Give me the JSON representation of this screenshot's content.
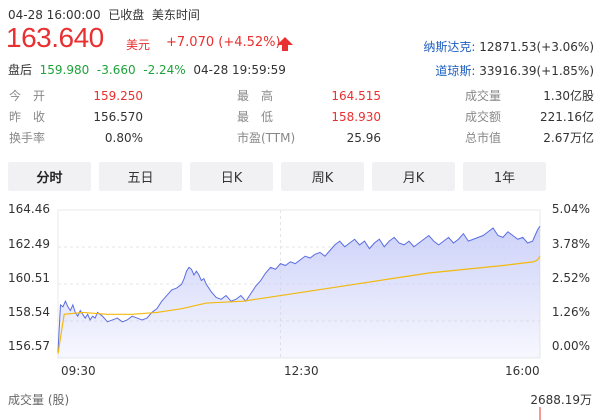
{
  "header": {
    "datetime": "04-28 16:00:00",
    "status": "已收盘",
    "timezone": "美东时间",
    "price": "163.640",
    "currency": "美元",
    "change": "+7.070 (+4.52%)",
    "after_hours": {
      "label": "盘后",
      "price": "159.980",
      "change": "-3.660",
      "pct": "-2.24%",
      "time": "04-28 19:59:59"
    }
  },
  "indices": [
    {
      "name": "纳斯达克:",
      "value": "12871.53(+3.06%)"
    },
    {
      "name": "道琼斯:",
      "value": "33916.39(+1.85%)"
    }
  ],
  "stats": [
    [
      {
        "label": "今　开",
        "value": "159.250",
        "color": "red"
      },
      {
        "label": "最　高",
        "value": "164.515",
        "color": "red"
      },
      {
        "label": "成交量",
        "value": "1.30亿股",
        "color": "normal"
      }
    ],
    [
      {
        "label": "昨　收",
        "value": "156.570",
        "color": "normal"
      },
      {
        "label": "最　低",
        "value": "158.930",
        "color": "red"
      },
      {
        "label": "成交额",
        "value": "221.16亿",
        "color": "normal"
      }
    ],
    [
      {
        "label": "换手率",
        "value": "0.80%",
        "color": "normal"
      },
      {
        "label": "市盈(TTM)",
        "value": "25.96",
        "color": "normal"
      },
      {
        "label": "总市值",
        "value": "2.67万亿",
        "color": "normal"
      }
    ]
  ],
  "tabs": [
    "分时",
    "五日",
    "日K",
    "周K",
    "月K",
    "1年"
  ],
  "active_tab": 0,
  "colors": {
    "up": "#e93030",
    "down": "#1ea33a",
    "price_line": "#5b6ee1",
    "avg_line": "#f2b90f",
    "area": "#c8cdf8",
    "link": "#1d5fbf"
  },
  "chart_data": {
    "type": "line",
    "y_left_ticks": [
      "164.46",
      "162.49",
      "160.51",
      "158.54",
      "156.57"
    ],
    "y_right_ticks": [
      "5.04%",
      "3.78%",
      "2.52%",
      "1.26%",
      "0.00%"
    ],
    "ylim": [
      156.57,
      164.46
    ],
    "x_ticks": [
      "09:30",
      "12:30",
      "16:00"
    ],
    "session_minutes": 390,
    "x_tick_minutes": [
      0,
      180,
      390
    ],
    "series": [
      {
        "role": "price",
        "points": [
          [
            0,
            156.9
          ],
          [
            2,
            159.4
          ],
          [
            4,
            159.3
          ],
          [
            6,
            159.6
          ],
          [
            8,
            159.3
          ],
          [
            10,
            159.1
          ],
          [
            12,
            159.4
          ],
          [
            14,
            159.0
          ],
          [
            16,
            158.8
          ],
          [
            18,
            159.1
          ],
          [
            20,
            158.9
          ],
          [
            22,
            158.7
          ],
          [
            24,
            158.9
          ],
          [
            26,
            158.6
          ],
          [
            28,
            158.8
          ],
          [
            30,
            158.7
          ],
          [
            32,
            159.0
          ],
          [
            34,
            158.9
          ],
          [
            36,
            158.8
          ],
          [
            40,
            158.5
          ],
          [
            44,
            158.6
          ],
          [
            48,
            158.7
          ],
          [
            52,
            158.5
          ],
          [
            56,
            158.6
          ],
          [
            60,
            158.8
          ],
          [
            64,
            158.7
          ],
          [
            68,
            158.6
          ],
          [
            72,
            158.7
          ],
          [
            76,
            159.0
          ],
          [
            80,
            159.2
          ],
          [
            84,
            159.6
          ],
          [
            88,
            159.9
          ],
          [
            92,
            160.2
          ],
          [
            96,
            160.3
          ],
          [
            100,
            160.5
          ],
          [
            102,
            160.8
          ],
          [
            104,
            161.2
          ],
          [
            106,
            161.4
          ],
          [
            108,
            161.3
          ],
          [
            110,
            161.0
          ],
          [
            112,
            161.2
          ],
          [
            114,
            161.0
          ],
          [
            116,
            160.7
          ],
          [
            118,
            160.8
          ],
          [
            120,
            160.5
          ],
          [
            124,
            160.1
          ],
          [
            128,
            159.8
          ],
          [
            132,
            159.7
          ],
          [
            136,
            159.9
          ],
          [
            140,
            159.6
          ],
          [
            144,
            159.7
          ],
          [
            148,
            159.9
          ],
          [
            152,
            159.6
          ],
          [
            156,
            160.0
          ],
          [
            160,
            160.4
          ],
          [
            164,
            160.7
          ],
          [
            168,
            161.1
          ],
          [
            172,
            161.4
          ],
          [
            176,
            161.3
          ],
          [
            180,
            161.6
          ],
          [
            184,
            161.5
          ],
          [
            188,
            161.7
          ],
          [
            192,
            161.6
          ],
          [
            196,
            161.8
          ],
          [
            200,
            162.0
          ],
          [
            204,
            161.9
          ],
          [
            208,
            162.1
          ],
          [
            212,
            162.2
          ],
          [
            216,
            162.0
          ],
          [
            220,
            162.3
          ],
          [
            224,
            162.6
          ],
          [
            228,
            162.8
          ],
          [
            232,
            162.5
          ],
          [
            236,
            162.7
          ],
          [
            240,
            162.9
          ],
          [
            244,
            162.6
          ],
          [
            248,
            162.8
          ],
          [
            252,
            162.4
          ],
          [
            256,
            162.7
          ],
          [
            260,
            162.9
          ],
          [
            264,
            162.5
          ],
          [
            268,
            162.8
          ],
          [
            272,
            163.0
          ],
          [
            276,
            162.7
          ],
          [
            280,
            162.6
          ],
          [
            284,
            162.8
          ],
          [
            288,
            162.5
          ],
          [
            292,
            162.7
          ],
          [
            296,
            162.9
          ],
          [
            300,
            163.1
          ],
          [
            304,
            162.8
          ],
          [
            308,
            162.6
          ],
          [
            312,
            162.8
          ],
          [
            316,
            163.0
          ],
          [
            320,
            162.7
          ],
          [
            324,
            162.9
          ],
          [
            328,
            163.2
          ],
          [
            332,
            162.8
          ],
          [
            336,
            162.9
          ],
          [
            340,
            163.0
          ],
          [
            344,
            163.1
          ],
          [
            348,
            163.3
          ],
          [
            352,
            163.5
          ],
          [
            356,
            163.1
          ],
          [
            360,
            163.0
          ],
          [
            364,
            163.3
          ],
          [
            368,
            163.1
          ],
          [
            372,
            162.9
          ],
          [
            376,
            163.0
          ],
          [
            380,
            162.7
          ],
          [
            384,
            162.8
          ],
          [
            386,
            163.1
          ],
          [
            388,
            163.4
          ],
          [
            390,
            163.6
          ]
        ]
      },
      {
        "role": "average",
        "points": [
          [
            0,
            156.8
          ],
          [
            5,
            158.9
          ],
          [
            20,
            159.0
          ],
          [
            40,
            158.9
          ],
          [
            60,
            158.9
          ],
          [
            80,
            159.0
          ],
          [
            100,
            159.2
          ],
          [
            120,
            159.5
          ],
          [
            150,
            159.6
          ],
          [
            180,
            159.9
          ],
          [
            210,
            160.2
          ],
          [
            240,
            160.5
          ],
          [
            270,
            160.8
          ],
          [
            300,
            161.1
          ],
          [
            330,
            161.3
          ],
          [
            360,
            161.5
          ],
          [
            385,
            161.7
          ],
          [
            388,
            161.8
          ],
          [
            390,
            162.0
          ]
        ]
      }
    ]
  },
  "volume": {
    "label": "成交量 (股)",
    "value": "2688.19万"
  }
}
